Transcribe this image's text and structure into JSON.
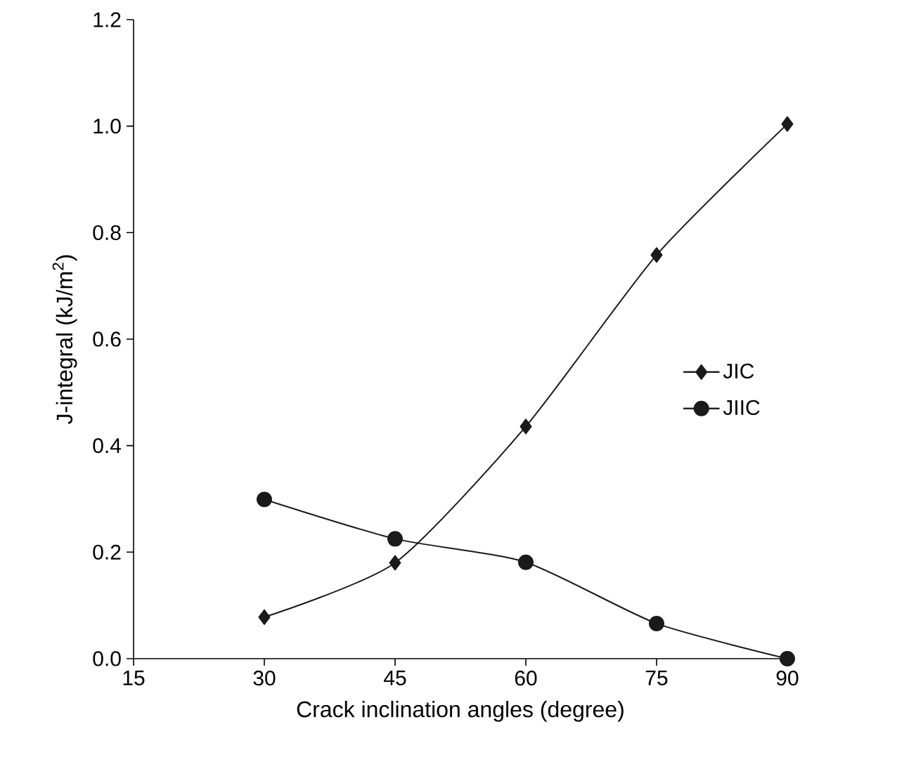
{
  "chart_data": {
    "type": "line",
    "xlabel": "Crack inclination angles (degree)",
    "ylabel": "J-integral (kJ/m$^{2}$)",
    "x": [
      30,
      45,
      60,
      75,
      90
    ],
    "series": [
      {
        "name": "JIC",
        "color": "#1a1a1a",
        "marker": "diamond",
        "values": [
          0.078,
          0.18,
          0.436,
          0.758,
          1.004
        ]
      },
      {
        "name": "JIIC",
        "color": "#1a1a1a",
        "marker": "circle",
        "values": [
          0.299,
          0.225,
          0.181,
          0.066,
          0
        ]
      }
    ],
    "xlim": [
      15,
      90
    ],
    "ylim": [
      0,
      1.2
    ],
    "xticks": [
      15,
      30,
      45,
      60,
      75,
      90
    ],
    "yticks": [
      {
        "value": 0,
        "label": "0.0"
      },
      0.2,
      0.4,
      0.6,
      0.8,
      {
        "value": 1,
        "label": "1.0"
      },
      1.2
    ],
    "grid": false,
    "legend": "right",
    "line_style": "solid"
  }
}
